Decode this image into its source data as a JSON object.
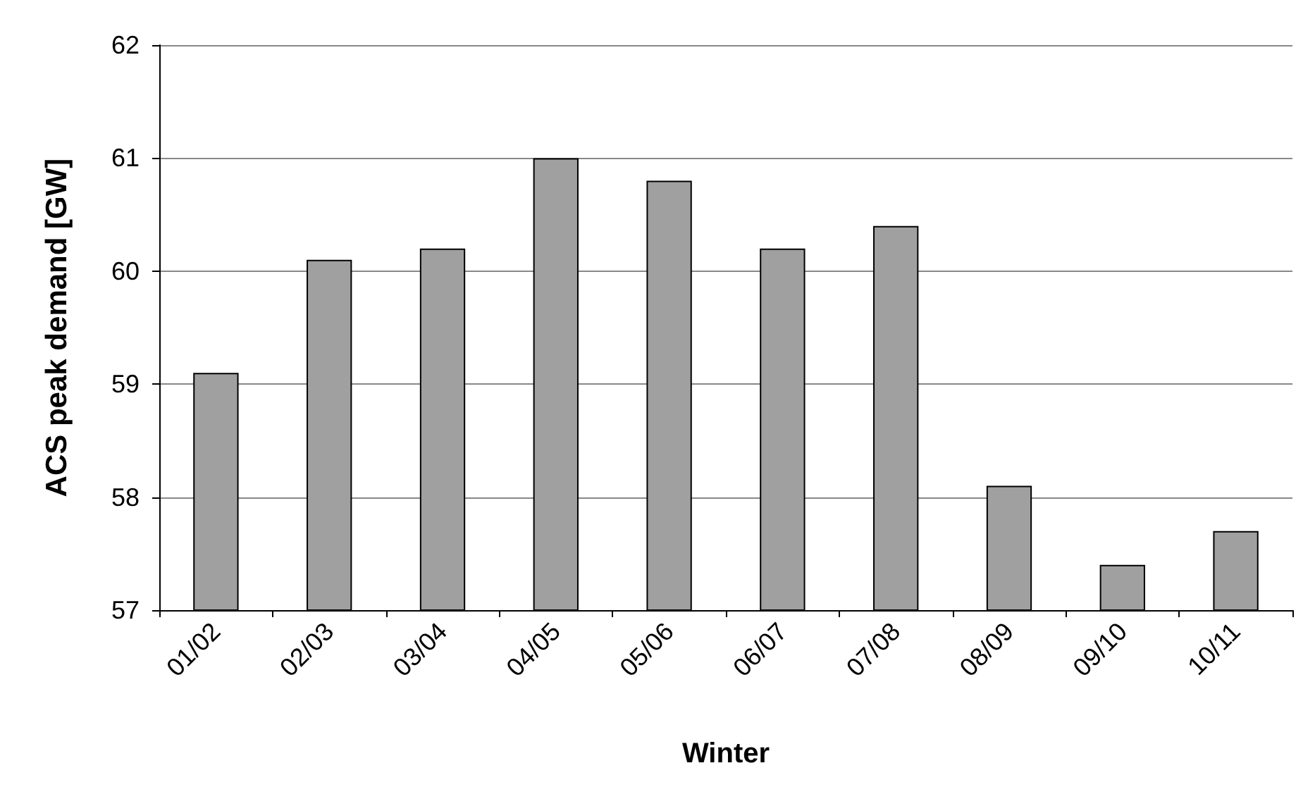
{
  "chart_data": {
    "type": "bar",
    "xlabel": "Winter",
    "ylabel": "ACS peak demand [GW]",
    "categories": [
      "01/02",
      "02/03",
      "03/04",
      "04/05",
      "05/06",
      "06/07",
      "07/08",
      "08/09",
      "09/10",
      "10/11"
    ],
    "values": [
      59.1,
      60.1,
      60.2,
      61.0,
      60.8,
      60.2,
      60.4,
      58.1,
      57.4,
      57.7
    ],
    "color": "#a0a0a0",
    "ylim": [
      57,
      62
    ],
    "yticks": [
      57,
      58,
      59,
      60,
      61,
      62
    ],
    "grid": "y"
  }
}
